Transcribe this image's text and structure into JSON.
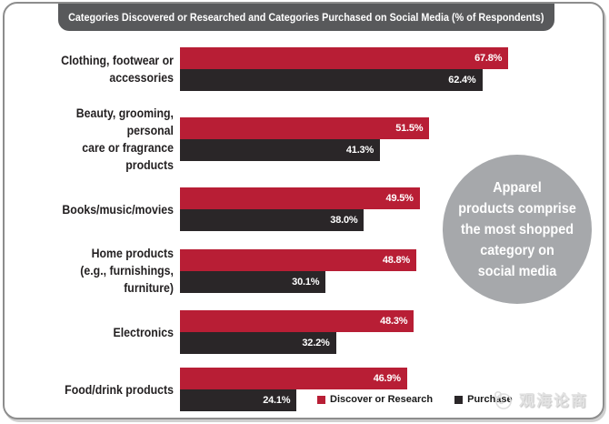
{
  "title": "Categories Discovered or Researched and Categories Purchased on Social Media (% of Respondents)",
  "chart_data": {
    "type": "bar",
    "orientation": "horizontal",
    "title": "Categories Discovered or Researched and Categories Purchased on Social Media (% of Respondents)",
    "xlim": [
      0,
      70
    ],
    "value_unit": "%",
    "value_label_position": "inside-end",
    "legend_position": "bottom-right",
    "grid": false,
    "categories": [
      "Clothing, footwear or\naccessories",
      "Beauty, grooming, personal\ncare or fragrance products",
      "Books/music/movies",
      "Home products\n(e.g., furnishings, furniture)",
      "Electronics",
      "Food/drink products"
    ],
    "series": [
      {
        "name": "Discover or Research",
        "color": "#B81E35",
        "values": [
          67.8,
          51.5,
          49.5,
          48.8,
          48.3,
          46.9
        ],
        "labels": [
          "67.8%",
          "51.5%",
          "49.5%",
          "48.8%",
          "48.3%",
          "46.9%"
        ]
      },
      {
        "name": "Purchase",
        "color": "#2A2628",
        "values": [
          62.4,
          41.3,
          38.0,
          30.1,
          32.2,
          24.1
        ],
        "labels": [
          "62.4%",
          "41.3%",
          "38.0%",
          "30.1%",
          "32.2%",
          "24.1%"
        ]
      }
    ]
  },
  "annotation_circle": {
    "text": "Apparel\nproducts comprise\nthe most shopped\ncategory on\nsocial media",
    "bg_color": "#A6A8AB",
    "text_color": "#FFFFFF"
  },
  "legend": {
    "items": [
      {
        "label": "Discover or Research",
        "color": "#B81E35"
      },
      {
        "label": "Purchase",
        "color": "#2A2628"
      }
    ]
  },
  "watermark": {
    "icon": "wave-logo",
    "text": "观海论商"
  },
  "colors": {
    "title_bg": "#58595B",
    "title_text": "#FFFFFF",
    "card_border": "#8D8D8D"
  }
}
